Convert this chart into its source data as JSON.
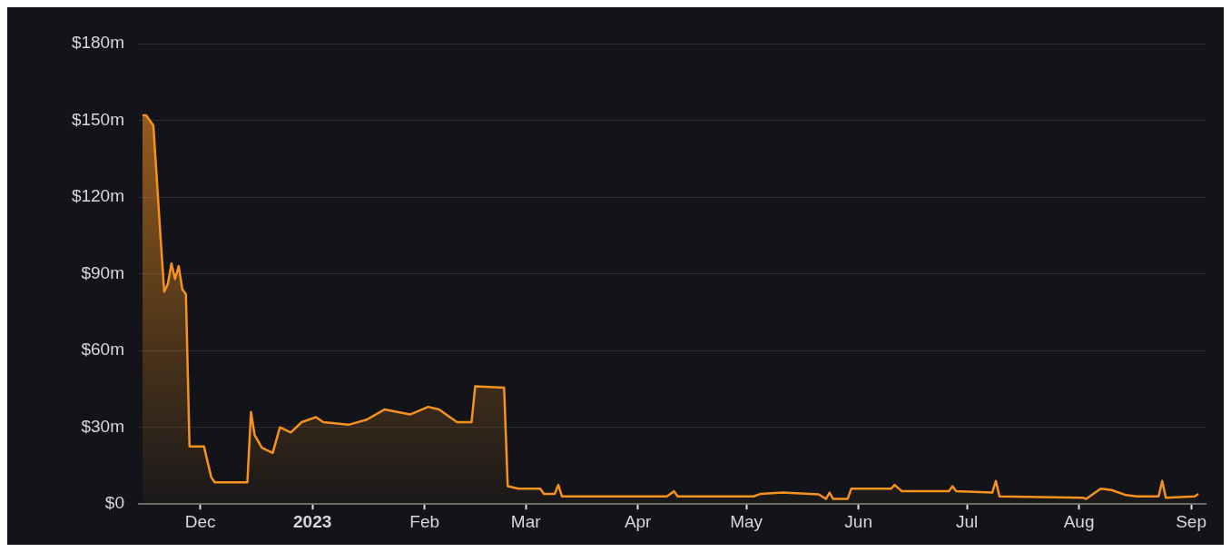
{
  "chart_data": {
    "type": "area",
    "x": [
      "2022-11-15",
      "2022-11-16",
      "2022-11-18",
      "2022-11-20",
      "2022-11-21",
      "2022-11-22",
      "2022-11-23",
      "2022-11-24",
      "2022-11-25",
      "2022-11-26",
      "2022-11-27",
      "2022-11-28",
      "2022-11-30",
      "2022-12-02",
      "2022-12-04",
      "2022-12-05",
      "2022-12-14",
      "2022-12-15",
      "2022-12-16",
      "2022-12-18",
      "2022-12-21",
      "2022-12-23",
      "2022-12-26",
      "2022-12-29",
      "2023-01-02",
      "2023-01-04",
      "2023-01-11",
      "2023-01-16",
      "2023-01-21",
      "2023-01-28",
      "2023-02-02",
      "2023-02-05",
      "2023-02-10",
      "2023-02-14",
      "2023-02-15",
      "2023-02-23",
      "2023-02-24",
      "2023-02-27",
      "2023-03-05",
      "2023-03-06",
      "2023-03-09",
      "2023-03-10",
      "2023-03-11",
      "2023-04-09",
      "2023-04-11",
      "2023-04-12",
      "2023-05-03",
      "2023-05-05",
      "2023-05-11",
      "2023-05-21",
      "2023-05-23",
      "2023-05-24",
      "2023-05-25",
      "2023-05-29",
      "2023-05-30",
      "2023-06-10",
      "2023-06-11",
      "2023-06-13",
      "2023-06-26",
      "2023-06-27",
      "2023-06-28",
      "2023-07-08",
      "2023-07-09",
      "2023-07-10",
      "2023-08-02",
      "2023-08-03",
      "2023-08-07",
      "2023-08-10",
      "2023-08-14",
      "2023-08-17",
      "2023-08-23",
      "2023-08-24",
      "2023-08-25",
      "2023-09-02",
      "2023-09-03"
    ],
    "series": [
      {
        "color": "#f7921e",
        "values": [
          152,
          152,
          148,
          104,
          83,
          86,
          94,
          88,
          93,
          84,
          82,
          22.5,
          22.5,
          22.5,
          10.5,
          8.5,
          8.5,
          36,
          27,
          22,
          20,
          30,
          28,
          32,
          34,
          32,
          31,
          33,
          37,
          35,
          38,
          37,
          32,
          32,
          46,
          45.5,
          7,
          6,
          6,
          4,
          4,
          7.5,
          3,
          3,
          5,
          3,
          3,
          4,
          4.5,
          3.8,
          2,
          4.5,
          2,
          2,
          6,
          6,
          7.5,
          5,
          5,
          7,
          5,
          4.5,
          9,
          3,
          2.5,
          2,
          6,
          5.5,
          3.5,
          3,
          3,
          9,
          2.5,
          3,
          4
        ]
      }
    ],
    "xlim": [
      "2022-11-14",
      "2023-09-05"
    ],
    "xticks": [
      {
        "value": "2022-12-01",
        "label": "Dec"
      },
      {
        "value": "2023-01-01",
        "label": "2023"
      },
      {
        "value": "2023-02-01",
        "label": "Feb"
      },
      {
        "value": "2023-03-01",
        "label": "Mar"
      },
      {
        "value": "2023-04-01",
        "label": "Apr"
      },
      {
        "value": "2023-05-01",
        "label": "May"
      },
      {
        "value": "2023-06-01",
        "label": "Jun"
      },
      {
        "value": "2023-07-01",
        "label": "Jul"
      },
      {
        "value": "2023-08-01",
        "label": "Aug"
      },
      {
        "value": "2023-09-01",
        "label": "Sep"
      }
    ],
    "ylim": [
      0,
      180
    ],
    "yticks": [
      {
        "value": 0,
        "label": "$0"
      },
      {
        "value": 30,
        "label": "$30m"
      },
      {
        "value": 60,
        "label": "$60m"
      },
      {
        "value": 90,
        "label": "$90m"
      },
      {
        "value": 120,
        "label": "$120m"
      },
      {
        "value": 150,
        "label": "$150m"
      },
      {
        "value": 180,
        "label": "$180m"
      }
    ],
    "grid": "y",
    "legend": false,
    "marker": "none",
    "line_style": "solid"
  }
}
